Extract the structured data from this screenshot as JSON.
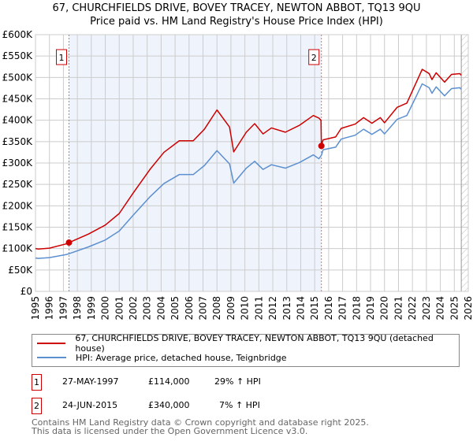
{
  "chart_data": {
    "type": "line",
    "title": "67, CHURCHFIELDS DRIVE, BOVEY TRACEY, NEWTON ABBOT, TQ13 9QU",
    "subtitle": "Price paid vs. HM Land Registry's House Price Index (HPI)",
    "xlim": [
      1995,
      2026
    ],
    "ylim": [
      0,
      600000
    ],
    "x_ticks": [
      "1995",
      "1996",
      "1997",
      "1998",
      "1999",
      "2000",
      "2001",
      "2002",
      "2003",
      "2004",
      "2005",
      "2006",
      "2007",
      "2008",
      "2009",
      "2010",
      "2011",
      "2012",
      "2013",
      "2014",
      "2015",
      "2016",
      "2017",
      "2018",
      "2019",
      "2020",
      "2021",
      "2022",
      "2023",
      "2024",
      "2025",
      "2026"
    ],
    "y_ticks": [
      {
        "v": 0,
        "label": "£0"
      },
      {
        "v": 50000,
        "label": "£50K"
      },
      {
        "v": 100000,
        "label": "£100K"
      },
      {
        "v": 150000,
        "label": "£150K"
      },
      {
        "v": 200000,
        "label": "£200K"
      },
      {
        "v": 250000,
        "label": "£250K"
      },
      {
        "v": 300000,
        "label": "£300K"
      },
      {
        "v": 350000,
        "label": "£350K"
      },
      {
        "v": 400000,
        "label": "£400K"
      },
      {
        "v": 450000,
        "label": "£450K"
      },
      {
        "v": 500000,
        "label": "£500K"
      },
      {
        "v": 550000,
        "label": "£550K"
      },
      {
        "v": 600000,
        "label": "£600K"
      }
    ],
    "grid": true,
    "data_end": 2025.5,
    "series": [
      {
        "name": "67, CHURCHFIELDS DRIVE, BOVEY TRACEY, NEWTON ABBOT, TQ13 9QU (detached house)",
        "color": "#cc0000",
        "x": [
          1995.0,
          1995.2,
          1996.0,
          1997.2,
          1997.4,
          1998.8,
          2000.0,
          2001.0,
          2002.0,
          2003.2,
          2004.2,
          2005.3,
          2006.3,
          2007.1,
          2008.0,
          2008.9,
          2009.2,
          2010.1,
          2010.7,
          2011.3,
          2011.9,
          2012.9,
          2013.9,
          2014.9,
          2015.3,
          2015.45,
          2015.48,
          2015.6,
          2016.5,
          2016.9,
          2017.9,
          2018.5,
          2019.1,
          2019.7,
          2020.0,
          2020.9,
          2021.6,
          2022.2,
          2022.7,
          2023.2,
          2023.4,
          2023.7,
          2024.3,
          2024.8,
          2025.4,
          2025.5
        ],
        "y": [
          100000,
          99000,
          101000,
          111000,
          114000,
          134000,
          155000,
          182000,
          230000,
          285000,
          325000,
          352000,
          352000,
          379000,
          424000,
          384000,
          326000,
          372000,
          392000,
          368000,
          382000,
          372000,
          388000,
          411000,
          405000,
          400000,
          340000,
          354000,
          361000,
          381000,
          391000,
          406000,
          393000,
          406000,
          394000,
          430000,
          440000,
          483000,
          519000,
          509000,
          495000,
          511000,
          489000,
          507000,
          509000,
          505000
        ]
      },
      {
        "name": "HPI: Average price, detached house, Teignbridge",
        "color": "#5b8fd0",
        "x": [
          1995.0,
          1995.2,
          1996.0,
          1997.2,
          1997.4,
          1998.8,
          2000.0,
          2001.0,
          2002.0,
          2003.2,
          2004.2,
          2005.3,
          2006.3,
          2007.1,
          2008.0,
          2008.9,
          2009.2,
          2010.1,
          2010.7,
          2011.3,
          2011.9,
          2012.9,
          2013.9,
          2014.9,
          2015.3,
          2015.48,
          2015.6,
          2016.5,
          2016.9,
          2017.9,
          2018.5,
          2019.1,
          2019.7,
          2020.0,
          2020.9,
          2021.6,
          2022.2,
          2022.7,
          2023.2,
          2023.4,
          2023.7,
          2024.3,
          2024.8,
          2025.4,
          2025.5
        ],
        "y": [
          78000,
          77000,
          79000,
          86000,
          88000,
          104000,
          120000,
          141000,
          178000,
          221000,
          252000,
          273000,
          273000,
          294000,
          329000,
          298000,
          253000,
          288000,
          304000,
          285000,
          296000,
          288000,
          301000,
          319000,
          310000,
          318000,
          331000,
          337000,
          356000,
          365000,
          379000,
          367000,
          379000,
          368000,
          402000,
          411000,
          451000,
          485000,
          476000,
          463000,
          478000,
          457000,
          474000,
          476000,
          472000
        ]
      }
    ],
    "sales": [
      {
        "label": "1",
        "x": 1997.4,
        "y": 114000,
        "date": "27-MAY-1997",
        "price": "£114,000",
        "hpi": "29% ↑ HPI"
      },
      {
        "label": "2",
        "x": 2015.48,
        "y": 340000,
        "date": "24-JUN-2015",
        "price": "£340,000",
        "hpi": "7% ↑ HPI"
      }
    ],
    "legend_placement": "below"
  },
  "footer": {
    "line1": "Contains HM Land Registry data © Crown copyright and database right 2025.",
    "line2": "This data is licensed under the Open Government Licence v3.0."
  }
}
